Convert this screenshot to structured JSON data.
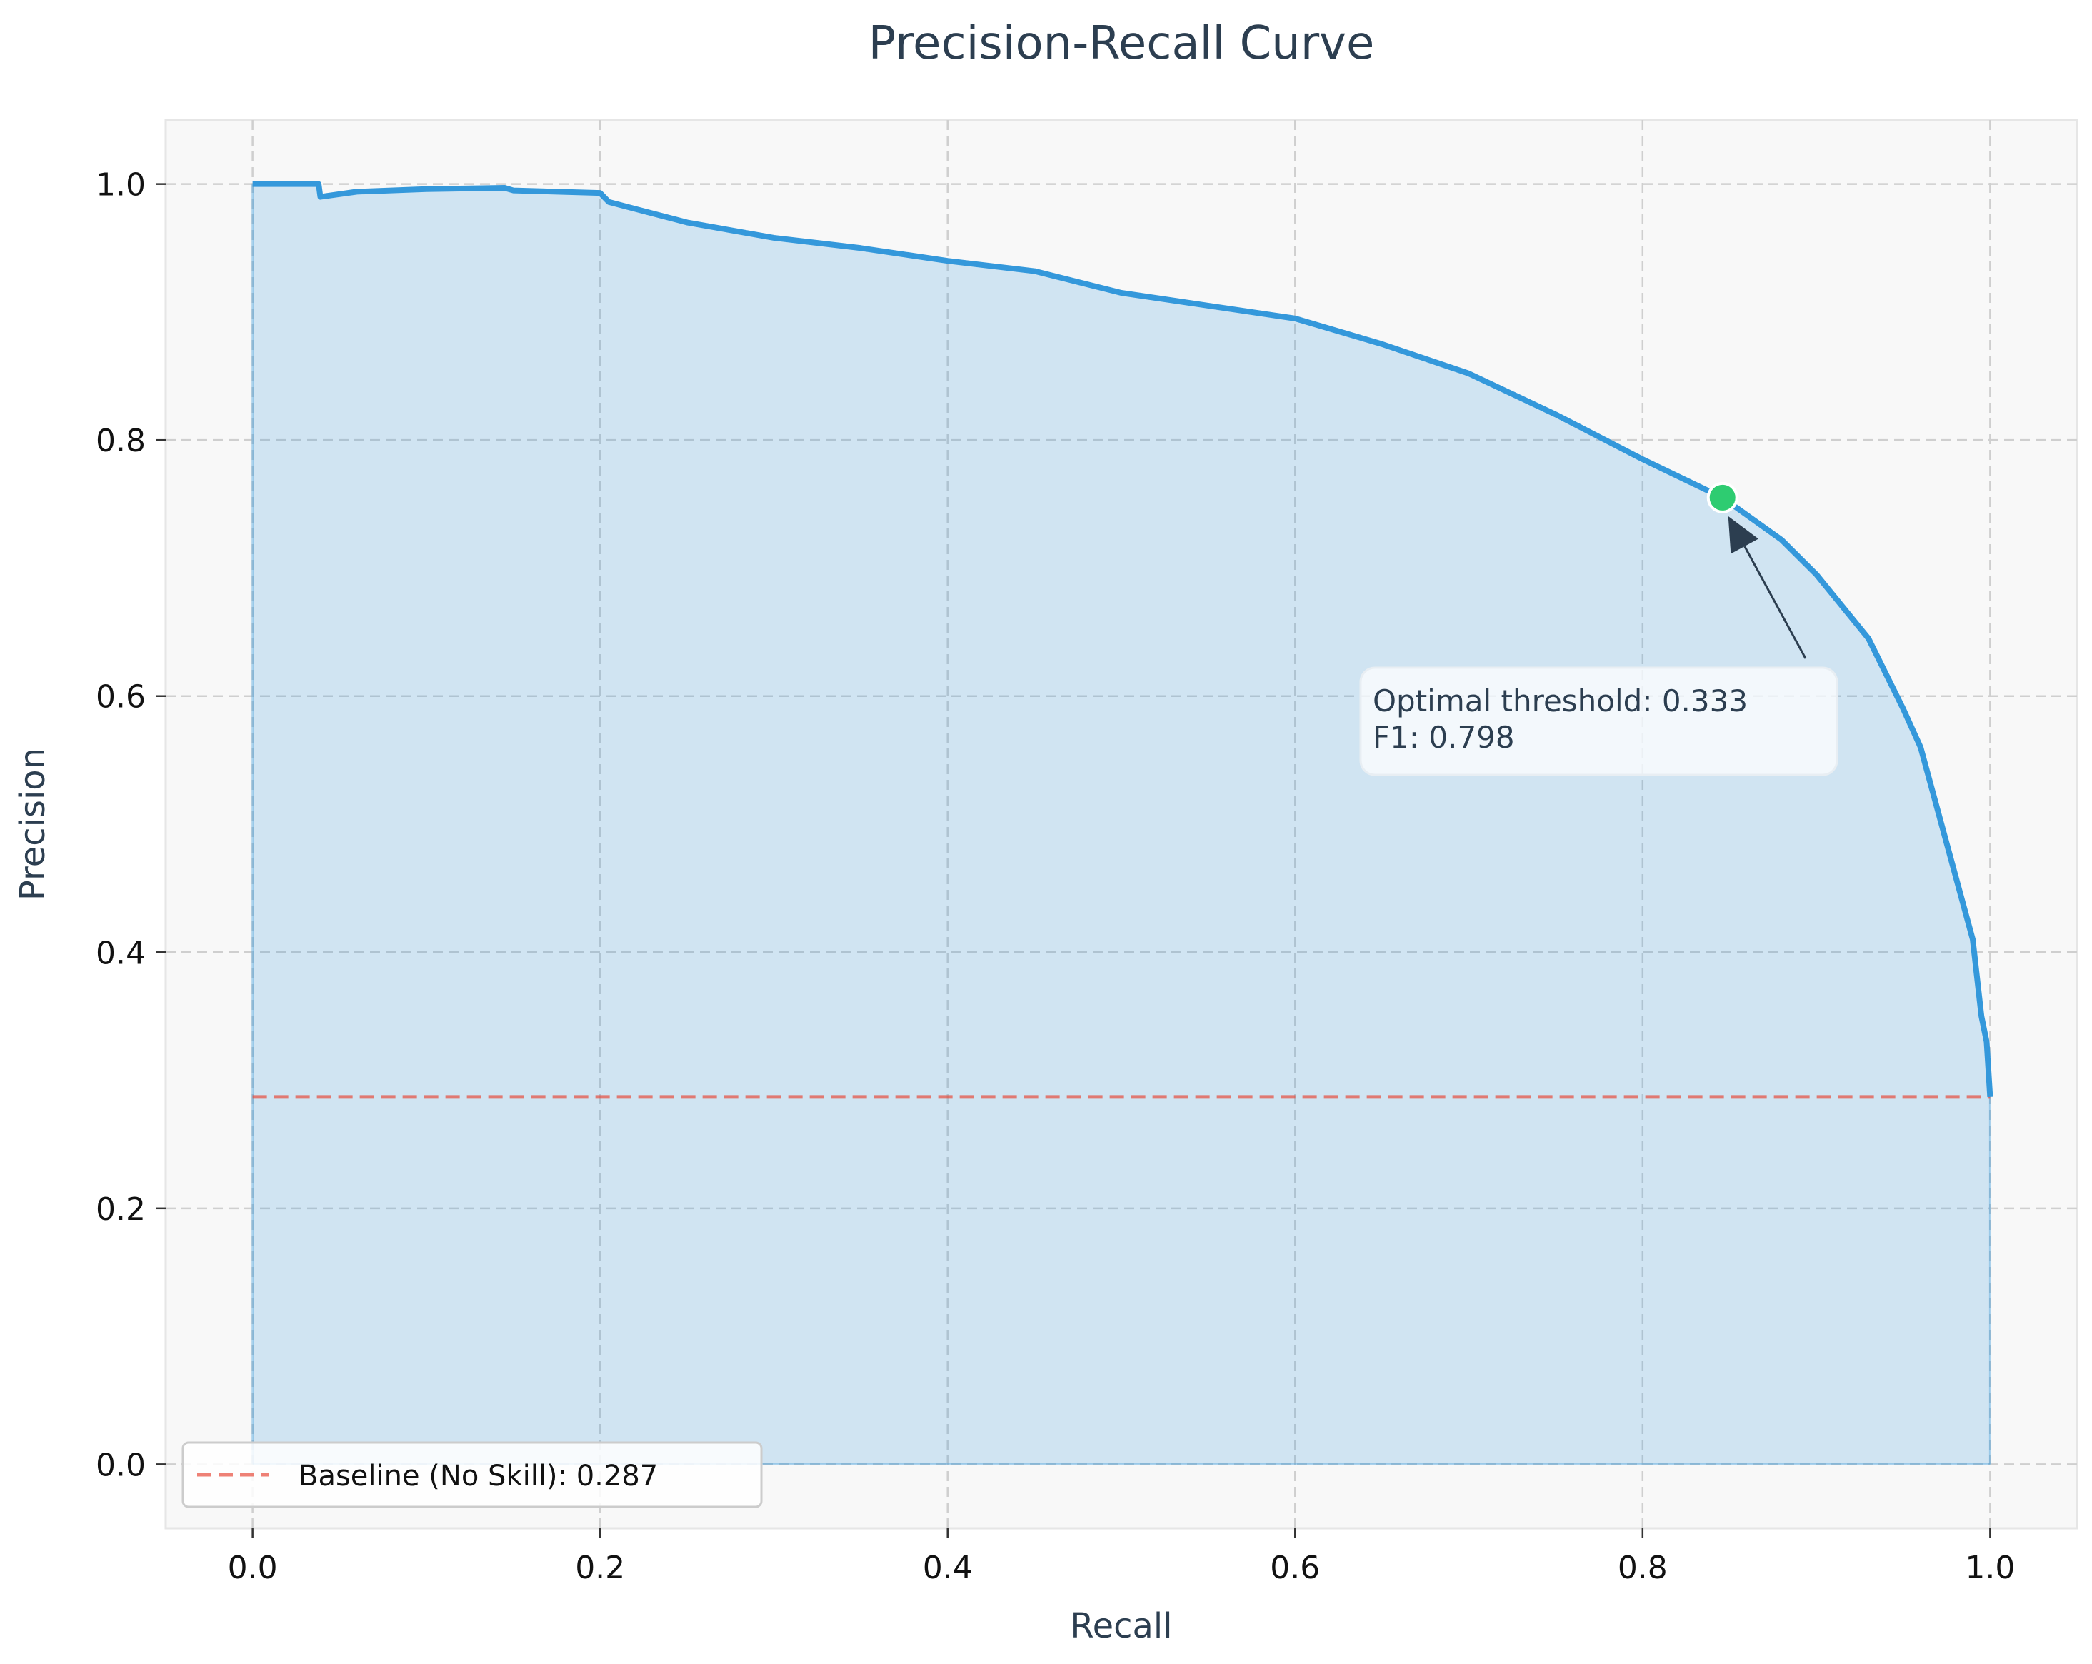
{
  "chart_data": {
    "type": "area",
    "title": "Precision-Recall Curve",
    "xlabel": "Recall",
    "ylabel": "Precision",
    "xlim": [
      -0.05,
      1.05
    ],
    "ylim": [
      -0.05,
      1.05
    ],
    "xticks": [
      0.0,
      0.2,
      0.4,
      0.6,
      0.8,
      1.0
    ],
    "yticks": [
      0.0,
      0.2,
      0.4,
      0.6,
      0.8,
      1.0
    ],
    "xtick_labels": [
      "0.0",
      "0.2",
      "0.4",
      "0.6",
      "0.8",
      "1.0"
    ],
    "ytick_labels": [
      "0.0",
      "0.2",
      "0.4",
      "0.6",
      "0.8",
      "1.0"
    ],
    "grid": true,
    "legend_position": "lower-left",
    "series": [
      {
        "name": "",
        "color": "#3498db",
        "fill": true,
        "x": [
          0.0,
          0.038,
          0.039,
          0.06,
          0.1,
          0.145,
          0.15,
          0.2,
          0.205,
          0.25,
          0.3,
          0.35,
          0.4,
          0.45,
          0.5,
          0.55,
          0.6,
          0.65,
          0.7,
          0.75,
          0.8,
          0.846,
          0.88,
          0.9,
          0.93,
          0.95,
          0.96,
          0.97,
          0.98,
          0.99,
          0.995,
          0.998,
          1.0
        ],
        "y": [
          1.0,
          1.0,
          0.99,
          0.994,
          0.996,
          0.997,
          0.995,
          0.993,
          0.986,
          0.97,
          0.958,
          0.95,
          0.94,
          0.932,
          0.915,
          0.905,
          0.895,
          0.875,
          0.852,
          0.82,
          0.785,
          0.755,
          0.722,
          0.695,
          0.645,
          0.59,
          0.56,
          0.51,
          0.46,
          0.41,
          0.35,
          0.33,
          0.287
        ]
      }
    ],
    "baseline": {
      "name": "Baseline (No Skill): 0.287",
      "value": 0.287,
      "color": "#e74c3c"
    },
    "optimal_point": {
      "x": 0.846,
      "y": 0.755,
      "color": "#2ecc71"
    },
    "annotation": {
      "line1": "Optimal threshold: 0.333",
      "line2": "F1: 0.798"
    }
  }
}
